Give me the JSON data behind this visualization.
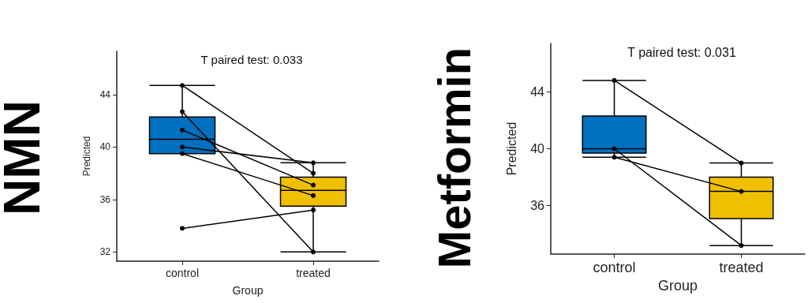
{
  "chart_data": [
    {
      "type": "box",
      "title": "NMN",
      "subtitle": "T paired test: 0.033",
      "xlabel": "Group",
      "ylabel": "Predicted",
      "categories": [
        "control",
        "treated"
      ],
      "ylim": [
        31.3,
        47.3
      ],
      "yticks": [
        32,
        36,
        40,
        44
      ],
      "grid": false,
      "marker": "circle",
      "series": [
        {
          "colors": [
            "#0070c0",
            "#f0c000"
          ],
          "boxes": [
            {
              "low": 39.5,
              "q1": 39.5,
              "median": 40.6,
              "q3": 42.3,
              "high": 44.7
            },
            {
              "low": 32.0,
              "q1": 35.5,
              "median": 36.7,
              "q3": 37.7,
              "high": 38.8
            }
          ]
        },
        {
          "type": "line",
          "color": "#000000",
          "values": [
            44.7,
            38.0
          ]
        },
        {
          "type": "line",
          "color": "#000000",
          "values": [
            42.7,
            32.0
          ]
        },
        {
          "type": "line",
          "color": "#000000",
          "values": [
            41.3,
            37.1
          ]
        },
        {
          "type": "line",
          "color": "#000000",
          "values": [
            40.0,
            38.8
          ]
        },
        {
          "type": "line",
          "color": "#000000",
          "values": [
            39.5,
            36.3
          ]
        },
        {
          "type": "line",
          "color": "#000000",
          "values": [
            33.8,
            35.2
          ]
        }
      ]
    },
    {
      "type": "box",
      "title": "Metformin",
      "subtitle": "T paired test: 0.031",
      "xlabel": "Group",
      "ylabel": "Predicted",
      "categories": [
        "control",
        "treated"
      ],
      "ylim": [
        32.6,
        47.4
      ],
      "yticks": [
        36,
        40,
        44
      ],
      "grid": false,
      "marker": "circle",
      "series": [
        {
          "colors": [
            "#0070c0",
            "#f0c000"
          ],
          "boxes": [
            {
              "low": 39.4,
              "q1": 39.7,
              "median": 40.0,
              "q3": 42.3,
              "high": 44.8
            },
            {
              "low": 33.2,
              "q1": 35.1,
              "median": 37.0,
              "q3": 38.0,
              "high": 39.0
            }
          ]
        },
        {
          "type": "line",
          "color": "#000000",
          "values": [
            44.8,
            39.0
          ]
        },
        {
          "type": "line",
          "color": "#000000",
          "values": [
            39.4,
            37.0
          ]
        },
        {
          "type": "line",
          "color": "#000000",
          "values": [
            40.0,
            33.2
          ]
        }
      ]
    }
  ]
}
